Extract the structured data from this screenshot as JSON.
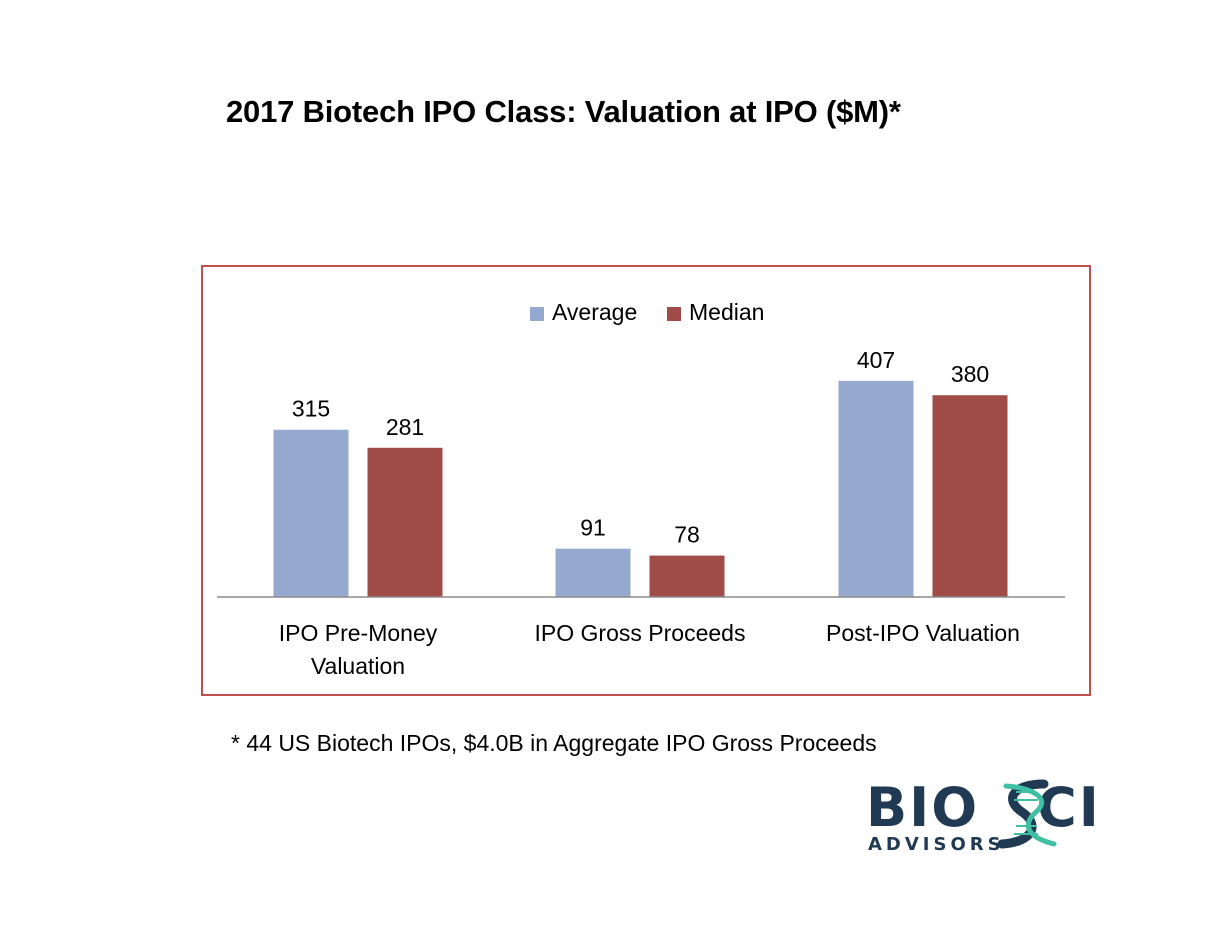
{
  "page": {
    "title": "2017 Biotech IPO Class:  Valuation at IPO ($M)*",
    "footnote": "* 44 US Biotech IPOs, $4.0B in Aggregate IPO Gross Proceeds"
  },
  "logo": {
    "word_left": "BIO",
    "word_right": "CI",
    "subtitle": "ADVISORS",
    "brand_color": "#1f3a52",
    "helix_color": "#3fbfa3"
  },
  "chart_data": {
    "type": "bar",
    "title": "",
    "categories": [
      "IPO Pre-Money\nValuation",
      "IPO Gross Proceeds",
      "Post-IPO Valuation"
    ],
    "series": [
      {
        "name": "Average",
        "values": [
          315,
          91,
          407
        ],
        "color": "#95a9cf"
      },
      {
        "name": "Median",
        "values": [
          281,
          78,
          380
        ],
        "color": "#a04c48"
      }
    ],
    "xlabel": "",
    "ylabel": "",
    "ylim": [
      0,
      450
    ],
    "grid": false,
    "legend": "top-center",
    "data_labels": true,
    "frame_color": "#c0504d"
  }
}
